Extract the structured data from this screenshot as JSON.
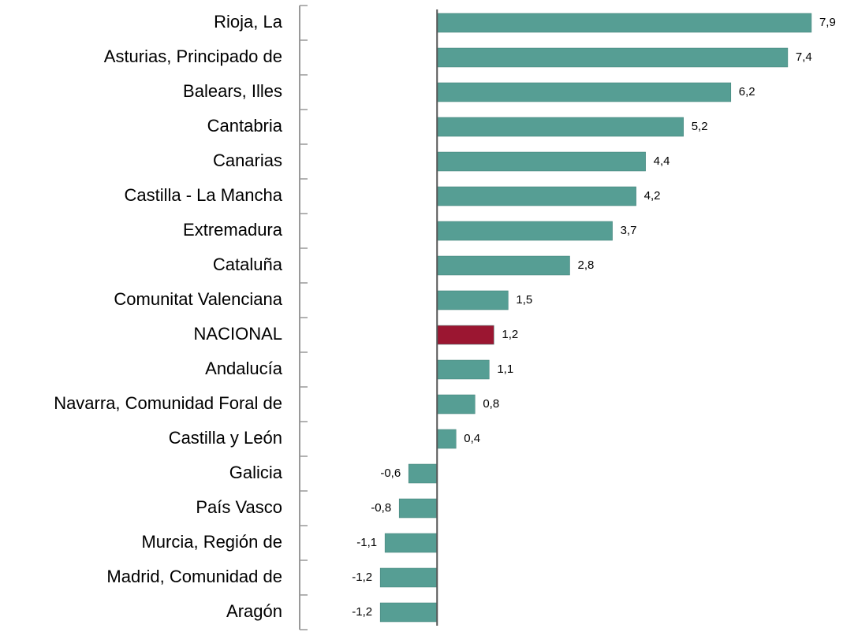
{
  "chart_data": {
    "type": "hbar",
    "categories": [
      "Rioja, La",
      "Asturias, Principado de",
      "Balears, Illes",
      "Cantabria",
      "Canarias",
      "Castilla - La Mancha",
      "Extremadura",
      "Cataluña",
      "Comunitat Valenciana",
      "NACIONAL",
      "Andalucía",
      "Navarra, Comunidad Foral de",
      "Castilla y León",
      "Galicia",
      "País Vasco",
      "Murcia, Región de",
      "Madrid, Comunidad de",
      "Aragón"
    ],
    "values": [
      7.9,
      7.4,
      6.2,
      5.2,
      4.4,
      4.2,
      3.7,
      2.8,
      1.5,
      1.2,
      1.1,
      0.8,
      0.4,
      -0.6,
      -0.8,
      -1.1,
      -1.2,
      -1.2
    ],
    "value_labels": [
      "7,9",
      "7,4",
      "6,2",
      "5,2",
      "4,4",
      "4,2",
      "3,7",
      "2,8",
      "1,5",
      "1,2",
      "1,1",
      "0,8",
      "0,4",
      "-0,6",
      "-0,8",
      "-1,1",
      "-1,2",
      "-1,2"
    ],
    "colors": [
      "#569e94",
      "#569e94",
      "#569e94",
      "#569e94",
      "#569e94",
      "#569e94",
      "#569e94",
      "#569e94",
      "#569e94",
      "#9b1631",
      "#569e94",
      "#569e94",
      "#569e94",
      "#569e94",
      "#569e94",
      "#569e94",
      "#569e94",
      "#569e94"
    ],
    "xlim": [
      -2.9,
      8.5
    ]
  }
}
